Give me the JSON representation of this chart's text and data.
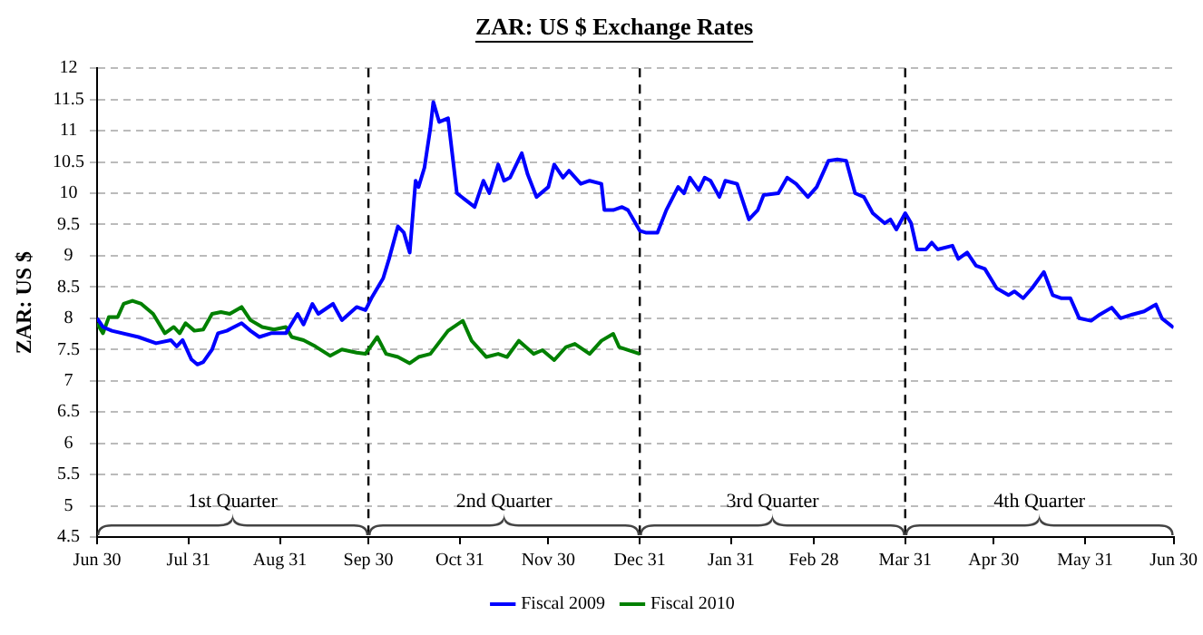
{
  "chart_data": {
    "type": "line",
    "title": "ZAR: US $ Exchange Rates",
    "ylabel": "ZAR: US $",
    "xlim": [
      "2008-06-30",
      "2009-06-30"
    ],
    "xticks": [
      {
        "value": "2008-06-30",
        "label": "Jun 30"
      },
      {
        "value": "2008-07-31",
        "label": "Jul 31"
      },
      {
        "value": "2008-08-31",
        "label": "Aug 31"
      },
      {
        "value": "2008-09-30",
        "label": "Sep 30"
      },
      {
        "value": "2008-10-31",
        "label": "Oct 31"
      },
      {
        "value": "2008-11-30",
        "label": "Nov 30"
      },
      {
        "value": "2008-12-31",
        "label": "Dec 31"
      },
      {
        "value": "2009-01-31",
        "label": "Jan 31"
      },
      {
        "value": "2009-02-28",
        "label": "Feb 28"
      },
      {
        "value": "2009-03-31",
        "label": "Mar 31"
      },
      {
        "value": "2009-04-30",
        "label": "Apr 30"
      },
      {
        "value": "2009-05-31",
        "label": "May 31"
      },
      {
        "value": "2009-06-30",
        "label": "Jun 30"
      }
    ],
    "ylim": [
      4.5,
      12
    ],
    "yticks": [
      4.5,
      5,
      5.5,
      6,
      6.5,
      7,
      7.5,
      8,
      8.5,
      9,
      9.5,
      10,
      10.5,
      11,
      11.5,
      12
    ],
    "grid": "y",
    "legend": "bottom",
    "marker": "none",
    "line_style": "solid",
    "ref_lines": [
      {
        "axis": "x",
        "value": "2008-09-30",
        "line_style": "dashed",
        "color": "#000000"
      },
      {
        "axis": "x",
        "value": "2008-12-31",
        "line_style": "dashed",
        "color": "#000000"
      },
      {
        "axis": "x",
        "value": "2009-03-31",
        "line_style": "dashed",
        "color": "#000000"
      }
    ],
    "annotations": [
      "1st Quarter",
      "2nd Quarter",
      "3rd Quarter",
      "4th Quarter"
    ],
    "series": [
      {
        "name": "Fiscal 2009",
        "color": "#0000ff",
        "x": [
          "2008-06-30",
          "2008-07-02",
          "2008-07-05",
          "2008-07-14",
          "2008-07-20",
          "2008-07-25",
          "2008-07-27",
          "2008-07-29",
          "2008-08-01",
          "2008-08-03",
          "2008-08-05",
          "2008-08-08",
          "2008-08-10",
          "2008-08-13",
          "2008-08-18",
          "2008-08-21",
          "2008-08-24",
          "2008-08-28",
          "2008-09-02",
          "2008-09-06",
          "2008-09-08",
          "2008-09-11",
          "2008-09-13",
          "2008-09-18",
          "2008-09-21",
          "2008-09-26",
          "2008-09-29",
          "2008-10-01",
          "2008-10-05",
          "2008-10-07",
          "2008-10-10",
          "2008-10-12",
          "2008-10-14",
          "2008-10-16",
          "2008-10-17",
          "2008-10-19",
          "2008-10-21",
          "2008-10-22",
          "2008-10-24",
          "2008-10-27",
          "2008-10-30",
          "2008-11-02",
          "2008-11-05",
          "2008-11-08",
          "2008-11-10",
          "2008-11-13",
          "2008-11-15",
          "2008-11-17",
          "2008-11-21",
          "2008-11-23",
          "2008-11-26",
          "2008-11-30",
          "2008-12-02",
          "2008-12-05",
          "2008-12-07",
          "2008-12-11",
          "2008-12-14",
          "2008-12-18",
          "2008-12-19",
          "2008-12-22",
          "2008-12-25",
          "2008-12-27",
          "2008-12-31",
          "2009-01-02",
          "2009-01-06",
          "2009-01-09",
          "2009-01-13",
          "2009-01-15",
          "2009-01-17",
          "2009-01-20",
          "2009-01-22",
          "2009-01-24",
          "2009-01-27",
          "2009-01-29",
          "2009-02-02",
          "2009-02-06",
          "2009-02-09",
          "2009-02-11",
          "2009-02-16",
          "2009-02-19",
          "2009-02-22",
          "2009-02-26",
          "2009-03-01",
          "2009-03-05",
          "2009-03-08",
          "2009-03-11",
          "2009-03-14",
          "2009-03-17",
          "2009-03-20",
          "2009-03-24",
          "2009-03-26",
          "2009-03-28",
          "2009-03-31",
          "2009-04-02",
          "2009-04-04",
          "2009-04-07",
          "2009-04-09",
          "2009-04-11",
          "2009-04-16",
          "2009-04-18",
          "2009-04-21",
          "2009-04-24",
          "2009-04-27",
          "2009-05-01",
          "2009-05-05",
          "2009-05-07",
          "2009-05-10",
          "2009-05-13",
          "2009-05-17",
          "2009-05-20",
          "2009-05-23",
          "2009-05-26",
          "2009-05-29",
          "2009-06-02",
          "2009-06-05",
          "2009-06-09",
          "2009-06-12",
          "2009-06-16",
          "2009-06-20",
          "2009-06-24",
          "2009-06-26",
          "2009-06-30"
        ],
        "values": [
          8.0,
          7.86,
          7.8,
          7.7,
          7.6,
          7.65,
          7.55,
          7.65,
          7.34,
          7.26,
          7.3,
          7.5,
          7.76,
          7.8,
          7.92,
          7.8,
          7.7,
          7.76,
          7.76,
          8.07,
          7.9,
          8.23,
          8.07,
          8.23,
          7.97,
          8.18,
          8.13,
          8.32,
          8.64,
          8.95,
          9.47,
          9.37,
          9.05,
          10.2,
          10.1,
          10.41,
          11.04,
          11.46,
          11.14,
          11.2,
          10.0,
          9.89,
          9.78,
          10.2,
          10.0,
          10.46,
          10.2,
          10.25,
          10.64,
          10.3,
          9.94,
          10.1,
          10.46,
          10.25,
          10.36,
          10.15,
          10.2,
          10.15,
          9.73,
          9.73,
          9.78,
          9.73,
          9.4,
          9.37,
          9.37,
          9.73,
          10.1,
          10.0,
          10.25,
          10.05,
          10.25,
          10.2,
          9.94,
          10.2,
          10.15,
          9.58,
          9.73,
          9.97,
          10.0,
          10.25,
          10.15,
          9.94,
          10.1,
          10.52,
          10.54,
          10.52,
          10.0,
          9.94,
          9.68,
          9.52,
          9.58,
          9.42,
          9.68,
          9.52,
          9.1,
          9.1,
          9.21,
          9.1,
          9.16,
          8.95,
          9.05,
          8.84,
          8.79,
          8.48,
          8.37,
          8.43,
          8.32,
          8.48,
          8.74,
          8.37,
          8.32,
          8.32,
          8.0,
          7.96,
          8.06,
          8.17,
          8.0,
          8.06,
          8.11,
          8.22,
          8.0,
          7.85
        ]
      },
      {
        "name": "Fiscal 2010",
        "color": "#008000",
        "x": [
          "2008-06-30",
          "2008-07-02",
          "2008-07-04",
          "2008-07-07",
          "2008-07-09",
          "2008-07-12",
          "2008-07-15",
          "2008-07-19",
          "2008-07-23",
          "2008-07-26",
          "2008-07-28",
          "2008-07-30",
          "2008-08-02",
          "2008-08-05",
          "2008-08-08",
          "2008-08-11",
          "2008-08-14",
          "2008-08-18",
          "2008-08-21",
          "2008-08-25",
          "2008-08-29",
          "2008-09-02",
          "2008-09-04",
          "2008-09-08",
          "2008-09-12",
          "2008-09-17",
          "2008-09-21",
          "2008-09-26",
          "2008-09-29",
          "2008-10-03",
          "2008-10-06",
          "2008-10-10",
          "2008-10-14",
          "2008-10-17",
          "2008-10-21",
          "2008-10-27",
          "2008-11-01",
          "2008-11-04",
          "2008-11-09",
          "2008-11-13",
          "2008-11-16",
          "2008-11-20",
          "2008-11-25",
          "2008-11-28",
          "2008-12-02",
          "2008-12-06",
          "2008-12-09",
          "2008-12-14",
          "2008-12-18",
          "2008-12-22",
          "2008-12-24",
          "2008-12-31"
        ],
        "values": [
          7.92,
          7.76,
          8.02,
          8.02,
          8.23,
          8.28,
          8.23,
          8.07,
          7.76,
          7.86,
          7.76,
          7.92,
          7.8,
          7.82,
          8.07,
          8.1,
          8.07,
          8.18,
          7.97,
          7.86,
          7.82,
          7.86,
          7.7,
          7.65,
          7.55,
          7.4,
          7.5,
          7.45,
          7.43,
          7.7,
          7.43,
          7.38,
          7.28,
          7.38,
          7.43,
          7.8,
          7.96,
          7.64,
          7.38,
          7.43,
          7.38,
          7.64,
          7.43,
          7.49,
          7.33,
          7.54,
          7.59,
          7.43,
          7.64,
          7.75,
          7.54,
          7.43
        ]
      }
    ]
  }
}
